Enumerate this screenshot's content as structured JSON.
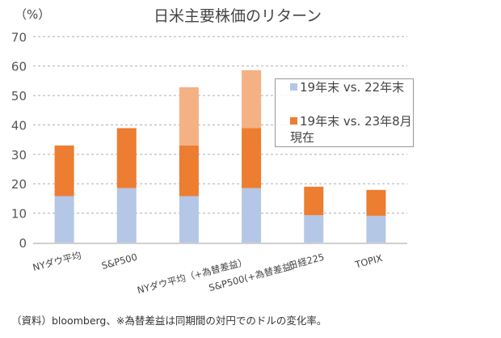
{
  "chart_data": {
    "type": "bar",
    "stacked": true,
    "title": "日米主要株価のリターン",
    "ylabel": "（%）",
    "xlabel": "",
    "ylim": [
      0,
      70
    ],
    "yticks": [
      0,
      10,
      20,
      30,
      40,
      50,
      60,
      70
    ],
    "grid": true,
    "legend_position": "right",
    "categories": [
      "NYダウ平均",
      "S&P500",
      "NYダウ平均（+為替差益）",
      "S&P500(+為替差益）",
      "日経225",
      "TOPIX"
    ],
    "series": [
      {
        "name": "19年末 vs. 22年末",
        "color": "#b4c7e7",
        "values": [
          15.8,
          18.5,
          15.8,
          18.5,
          9.3,
          9.1
        ]
      },
      {
        "name": "19年末 vs. 23年8月現在",
        "color": "#ed7d31",
        "values": [
          17.2,
          20.4,
          17.2,
          20.4,
          9.7,
          8.8
        ]
      },
      {
        "name": "",
        "color": "#f4b183",
        "values": [
          0,
          0,
          19.8,
          19.7,
          0,
          0
        ]
      }
    ],
    "footnote": "（資料）bloomberg、※為替差益は同期間の対円でのドルの変化率。"
  }
}
